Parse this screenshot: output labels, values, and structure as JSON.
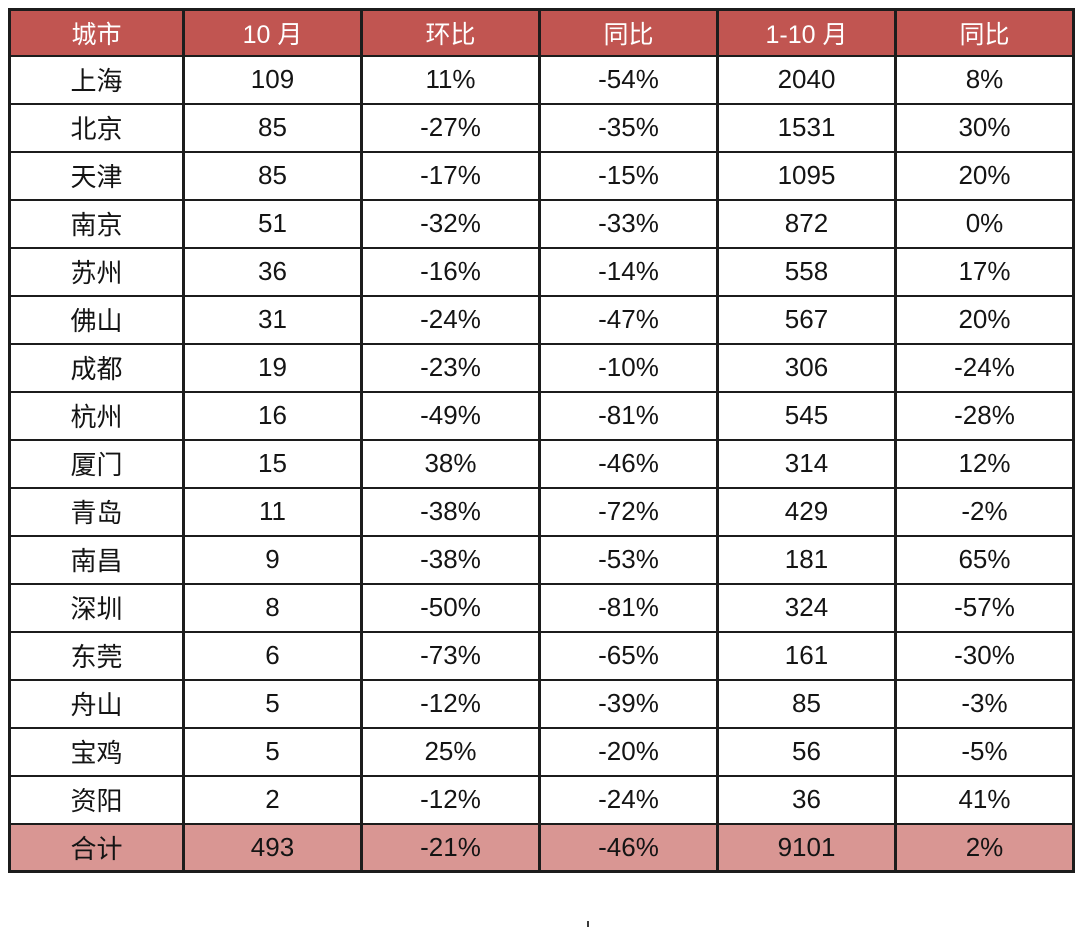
{
  "colors": {
    "header_bg": "#C15551",
    "header_text": "#FFFFFF",
    "total_bg": "#D99693",
    "body_bg": "#FFFFFF",
    "border": "#1C1C1C",
    "text": "#141414"
  },
  "chart_data": {
    "type": "table",
    "columns": [
      "城市",
      "10 月",
      "环比",
      "同比",
      "1-10 月",
      "同比"
    ],
    "rows": [
      [
        "上海",
        "109",
        "11%",
        "-54%",
        "2040",
        "8%"
      ],
      [
        "北京",
        "85",
        "-27%",
        "-35%",
        "1531",
        "30%"
      ],
      [
        "天津",
        "85",
        "-17%",
        "-15%",
        "1095",
        "20%"
      ],
      [
        "南京",
        "51",
        "-32%",
        "-33%",
        "872",
        "0%"
      ],
      [
        "苏州",
        "36",
        "-16%",
        "-14%",
        "558",
        "17%"
      ],
      [
        "佛山",
        "31",
        "-24%",
        "-47%",
        "567",
        "20%"
      ],
      [
        "成都",
        "19",
        "-23%",
        "-10%",
        "306",
        "-24%"
      ],
      [
        "杭州",
        "16",
        "-49%",
        "-81%",
        "545",
        "-28%"
      ],
      [
        "厦门",
        "15",
        "38%",
        "-46%",
        "314",
        "12%"
      ],
      [
        "青岛",
        "11",
        "-38%",
        "-72%",
        "429",
        "-2%"
      ],
      [
        "南昌",
        "9",
        "-38%",
        "-53%",
        "181",
        "65%"
      ],
      [
        "深圳",
        "8",
        "-50%",
        "-81%",
        "324",
        "-57%"
      ],
      [
        "东莞",
        "6",
        "-73%",
        "-65%",
        "161",
        "-30%"
      ],
      [
        "舟山",
        "5",
        "-12%",
        "-39%",
        "85",
        "-3%"
      ],
      [
        "宝鸡",
        "5",
        "25%",
        "-20%",
        "56",
        "-5%"
      ],
      [
        "资阳",
        "2",
        "-12%",
        "-24%",
        "36",
        "41%"
      ]
    ],
    "total": [
      "合计",
      "493",
      "-21%",
      "-46%",
      "9101",
      "2%"
    ]
  }
}
